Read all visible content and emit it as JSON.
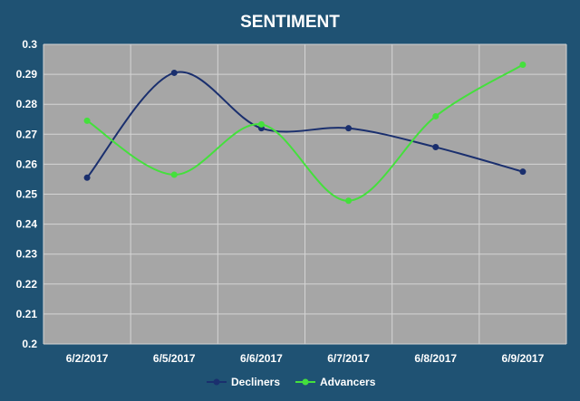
{
  "chart_data": {
    "type": "line",
    "title": "SENTIMENT",
    "xlabel": "",
    "ylabel": "",
    "categories": [
      "6/2/2017",
      "6/5/2017",
      "6/6/2017",
      "6/7/2017",
      "6/8/2017",
      "6/9/2017"
    ],
    "y_ticks": [
      "0.2",
      "0.21",
      "0.22",
      "0.23",
      "0.24",
      "0.25",
      "0.26",
      "0.27",
      "0.28",
      "0.29",
      "0.3"
    ],
    "ylim": [
      0.2,
      0.3
    ],
    "grid": true,
    "smooth": true,
    "legend_position": "bottom",
    "series": [
      {
        "name": "Decliners",
        "color": "#1a2f6e",
        "values": [
          0.2555,
          0.2905,
          0.272,
          0.272,
          0.2657,
          0.2575
        ]
      },
      {
        "name": "Advancers",
        "color": "#44e03c",
        "values": [
          0.2745,
          0.2565,
          0.2733,
          0.2478,
          0.276,
          0.2932
        ]
      }
    ],
    "colors": {
      "background": "#1f5273",
      "plot_area": "#a6a6a6",
      "grid": "#d4d4d4",
      "text": "#ffffff"
    }
  }
}
